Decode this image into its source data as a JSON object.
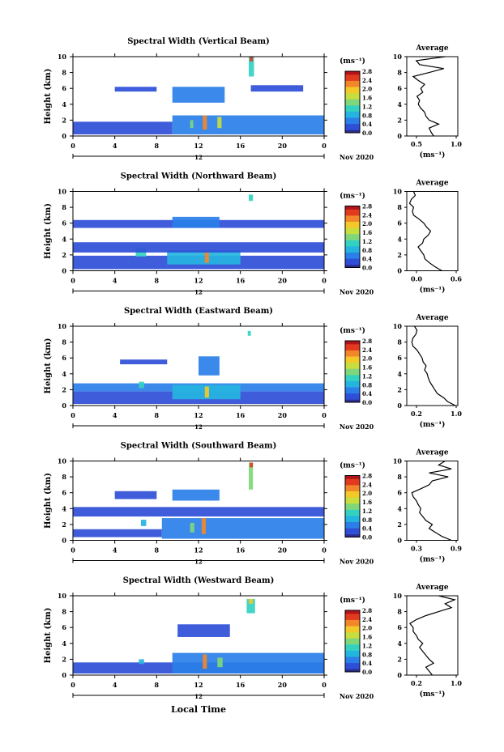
{
  "colors": {
    "background": "#ffffff",
    "axes": "#000000",
    "colormap": [
      "#2b2d8f",
      "#2f4fd8",
      "#2a7fe8",
      "#25b4e0",
      "#33d1c0",
      "#7fd77a",
      "#c8dd3e",
      "#f3c92a",
      "#f2872a",
      "#e23a1e",
      "#b0141a"
    ]
  },
  "page": {
    "xlabel": "Local Time",
    "date_label": "Nov 2020"
  },
  "chart_data": [
    {
      "type": "heatmap",
      "title": "Spectral Width (Vertical Beam)",
      "ylabel": "Height (km)",
      "xlabel": "Local Time",
      "xlim": [
        0,
        24
      ],
      "ylim": [
        0,
        10
      ],
      "xticks": [
        "0",
        "4",
        "8",
        "12",
        "16",
        "20",
        "0"
      ],
      "yticks": [
        "0",
        "2",
        "4",
        "6",
        "8",
        "10"
      ],
      "date_label": "Nov 2020",
      "marker_label": "12",
      "colorbar": {
        "unit": "(ms⁻¹)",
        "ticks": [
          "0.0",
          "0.4",
          "0.8",
          "1.2",
          "1.6",
          "2.0",
          "2.4",
          "2.8"
        ]
      },
      "regions": [
        {
          "t": [
            0,
            9.5
          ],
          "h": [
            0.2,
            1.8
          ],
          "level": 1
        },
        {
          "t": [
            9.5,
            24
          ],
          "h": [
            0.2,
            2.6
          ],
          "level": 2
        },
        {
          "t": [
            12.4,
            12.8
          ],
          "h": [
            0.8,
            2.6
          ],
          "level": 8
        },
        {
          "t": [
            13.8,
            14.2
          ],
          "h": [
            1.0,
            2.4
          ],
          "level": 6
        },
        {
          "t": [
            11.2,
            11.5
          ],
          "h": [
            1.0,
            2.0
          ],
          "level": 5
        },
        {
          "t": [
            4,
            8
          ],
          "h": [
            5.6,
            6.2
          ],
          "level": 1
        },
        {
          "t": [
            9.5,
            14.5
          ],
          "h": [
            4.2,
            6.2
          ],
          "level": 2
        },
        {
          "t": [
            17,
            22
          ],
          "h": [
            5.6,
            6.4
          ],
          "level": 1
        },
        {
          "t": [
            16.8,
            17.3
          ],
          "h": [
            7.5,
            10
          ],
          "level": 4
        },
        {
          "t": [
            16.9,
            17.2
          ],
          "h": [
            9.4,
            10
          ],
          "level": 9
        }
      ],
      "average": {
        "title": "Average",
        "xlabel": "(ms⁻¹)",
        "xlim": [
          0.2,
          1.0
        ],
        "xticks": [
          "0.5",
          "1.0"
        ],
        "heights": [
          0,
          0.5,
          1,
          1.5,
          2,
          2.5,
          3,
          3.5,
          4,
          4.5,
          5,
          5.5,
          6,
          6.5,
          7,
          7.5,
          8,
          8.5,
          9,
          9.5,
          10
        ],
        "values": [
          0.62,
          0.58,
          0.55,
          0.7,
          0.55,
          0.5,
          0.48,
          0.42,
          0.38,
          0.4,
          0.36,
          0.45,
          0.42,
          0.48,
          0.38,
          0.3,
          0.55,
          0.78,
          0.4,
          0.35,
          0.8
        ]
      }
    },
    {
      "type": "heatmap",
      "title": "Spectral Width (Northward Beam)",
      "ylabel": "Height (km)",
      "xlabel": "Local Time",
      "xlim": [
        0,
        24
      ],
      "ylim": [
        0,
        10
      ],
      "xticks": [
        "0",
        "4",
        "8",
        "12",
        "16",
        "20",
        "0"
      ],
      "yticks": [
        "0",
        "2",
        "4",
        "6",
        "8",
        "10"
      ],
      "date_label": "Nov 2020",
      "marker_label": "12",
      "colorbar": {
        "unit": "(ms⁻¹)",
        "ticks": [
          "0.0",
          "0.4",
          "0.8",
          "1.2",
          "1.6",
          "2.0",
          "2.4",
          "2.8"
        ]
      },
      "regions": [
        {
          "t": [
            0,
            24
          ],
          "h": [
            0.2,
            1.9
          ],
          "level": 1
        },
        {
          "t": [
            9,
            16
          ],
          "h": [
            0.8,
            2.6
          ],
          "level": 3
        },
        {
          "t": [
            12.6,
            13.0
          ],
          "h": [
            1.0,
            2.4
          ],
          "level": 8
        },
        {
          "t": [
            6,
            7
          ],
          "h": [
            1.8,
            2.8
          ],
          "level": 4
        },
        {
          "t": [
            0,
            24
          ],
          "h": [
            2.3,
            3.6
          ],
          "level": 1
        },
        {
          "t": [
            0,
            24
          ],
          "h": [
            5.4,
            6.4
          ],
          "level": 1
        },
        {
          "t": [
            9.5,
            14
          ],
          "h": [
            5.4,
            6.8
          ],
          "level": 2
        },
        {
          "t": [
            16.8,
            17.2
          ],
          "h": [
            8.8,
            9.6
          ],
          "level": 4
        }
      ],
      "average": {
        "title": "Average",
        "xlabel": "(ms⁻¹)",
        "xlim": [
          0.0,
          0.9
        ],
        "xticks": [
          "0.0",
          "0.6"
        ],
        "heights": [
          0,
          0.5,
          1,
          1.5,
          2,
          2.5,
          3,
          3.5,
          4,
          4.5,
          5,
          5.5,
          6,
          6.5,
          7,
          7.5,
          8,
          8.5,
          9,
          9.5,
          10
        ],
        "values": [
          0.62,
          0.5,
          0.4,
          0.32,
          0.3,
          0.25,
          0.2,
          0.28,
          0.3,
          0.38,
          0.42,
          0.35,
          0.3,
          0.22,
          0.12,
          0.1,
          0.12,
          0.05,
          0.08,
          0.15,
          0.12
        ]
      }
    },
    {
      "type": "heatmap",
      "title": "Spectral Width (Eastward Beam)",
      "ylabel": "Height (km)",
      "xlabel": "Local Time",
      "xlim": [
        0,
        24
      ],
      "ylim": [
        0,
        10
      ],
      "xticks": [
        "0",
        "4",
        "8",
        "12",
        "16",
        "20",
        "0"
      ],
      "yticks": [
        "0",
        "2",
        "4",
        "6",
        "8",
        "10"
      ],
      "date_label": "Nov 2020",
      "marker_label": "12",
      "colorbar": {
        "unit": "(ms⁻¹)",
        "ticks": [
          "0.0",
          "0.4",
          "0.8",
          "1.2",
          "1.6",
          "2.0",
          "2.4",
          "2.8"
        ]
      },
      "regions": [
        {
          "t": [
            0,
            24
          ],
          "h": [
            0.2,
            1.8
          ],
          "level": 1
        },
        {
          "t": [
            0,
            24
          ],
          "h": [
            1.8,
            2.8
          ],
          "level": 2
        },
        {
          "t": [
            9.5,
            16
          ],
          "h": [
            0.8,
            2.6
          ],
          "level": 3
        },
        {
          "t": [
            12.6,
            13.0
          ],
          "h": [
            1.0,
            2.4
          ],
          "level": 7
        },
        {
          "t": [
            6.3,
            6.8
          ],
          "h": [
            2.2,
            3.0
          ],
          "level": 4
        },
        {
          "t": [
            12,
            14
          ],
          "h": [
            3.8,
            6.2
          ],
          "level": 2
        },
        {
          "t": [
            4.5,
            9
          ],
          "h": [
            5.2,
            5.8
          ],
          "level": 1
        },
        {
          "t": [
            16.7,
            17.0
          ],
          "h": [
            8.8,
            9.4
          ],
          "level": 4
        }
      ],
      "average": {
        "title": "Average",
        "xlabel": "(ms⁻¹)",
        "xlim": [
          0.0,
          1.0
        ],
        "xticks": [
          "0.2",
          "1.0"
        ],
        "heights": [
          0,
          0.5,
          1,
          1.5,
          2,
          2.5,
          3,
          3.5,
          4,
          4.5,
          5,
          5.5,
          6,
          6.5,
          7,
          7.5,
          8,
          8.5,
          9,
          9.5,
          10
        ],
        "values": [
          0.95,
          0.8,
          0.72,
          0.6,
          0.55,
          0.5,
          0.45,
          0.42,
          0.4,
          0.35,
          0.38,
          0.32,
          0.3,
          0.25,
          0.2,
          0.12,
          0.1,
          0.12,
          0.18,
          0.2,
          0.15
        ]
      }
    },
    {
      "type": "heatmap",
      "title": "Spectral Width (Southward Beam)",
      "ylabel": "Height (km)",
      "xlabel": "Local Time",
      "xlim": [
        0,
        24
      ],
      "ylim": [
        0,
        10
      ],
      "xticks": [
        "0",
        "4",
        "8",
        "12",
        "16",
        "20",
        "0"
      ],
      "yticks": [
        "0",
        "2",
        "4",
        "6",
        "8",
        "10"
      ],
      "date_label": "Nov 2020",
      "marker_label": "12",
      "colorbar": {
        "unit": "(ms⁻¹)",
        "ticks": [
          "0.0",
          "0.4",
          "0.8",
          "1.2",
          "1.6",
          "2.0",
          "2.4",
          "2.8"
        ]
      },
      "regions": [
        {
          "t": [
            0,
            8.5
          ],
          "h": [
            0.4,
            1.4
          ],
          "level": 1
        },
        {
          "t": [
            8.5,
            24
          ],
          "h": [
            0.2,
            2.8
          ],
          "level": 2
        },
        {
          "t": [
            12.3,
            12.7
          ],
          "h": [
            0.8,
            2.8
          ],
          "level": 8
        },
        {
          "t": [
            11.2,
            11.6
          ],
          "h": [
            1.0,
            2.2
          ],
          "level": 5
        },
        {
          "t": [
            6.5,
            7
          ],
          "h": [
            1.8,
            2.6
          ],
          "level": 3
        },
        {
          "t": [
            0,
            24
          ],
          "h": [
            3.0,
            4.2
          ],
          "level": 1
        },
        {
          "t": [
            4,
            8
          ],
          "h": [
            5.2,
            6.2
          ],
          "level": 1
        },
        {
          "t": [
            9.5,
            14
          ],
          "h": [
            5.0,
            6.4
          ],
          "level": 2
        },
        {
          "t": [
            16.8,
            17.2
          ],
          "h": [
            6.4,
            9.8
          ],
          "level": 5
        },
        {
          "t": [
            16.9,
            17.2
          ],
          "h": [
            9.2,
            9.8
          ],
          "level": 9
        }
      ],
      "average": {
        "title": "Average",
        "xlabel": "(ms⁻¹)",
        "xlim": [
          0.2,
          1.0
        ],
        "xticks": [
          "0.3",
          "0.9"
        ],
        "heights": [
          0,
          0.5,
          1,
          1.5,
          2,
          2.5,
          3,
          3.5,
          4,
          4.5,
          5,
          5.5,
          6,
          6.5,
          7,
          7.5,
          8,
          8.5,
          9,
          9.5,
          10
        ],
        "values": [
          0.9,
          0.75,
          0.65,
          0.55,
          0.6,
          0.5,
          0.45,
          0.4,
          0.42,
          0.38,
          0.35,
          0.3,
          0.28,
          0.42,
          0.55,
          0.6,
          0.85,
          0.55,
          0.9,
          0.7,
          0.8
        ]
      }
    },
    {
      "type": "heatmap",
      "title": "Spectral Width (Westward Beam)",
      "ylabel": "Height (km)",
      "xlabel": "Local Time",
      "xlim": [
        0,
        24
      ],
      "ylim": [
        0,
        10
      ],
      "xticks": [
        "0",
        "4",
        "8",
        "12",
        "16",
        "20",
        "0"
      ],
      "yticks": [
        "0",
        "2",
        "4",
        "6",
        "8",
        "10"
      ],
      "date_label": "Nov 2020",
      "marker_label": "12",
      "colorbar": {
        "unit": "(ms⁻¹)",
        "ticks": [
          "0.0",
          "0.4",
          "0.8",
          "1.2",
          "1.6",
          "2.0",
          "2.4",
          "2.8"
        ]
      },
      "regions": [
        {
          "t": [
            0,
            24
          ],
          "h": [
            0.2,
            1.6
          ],
          "level": 1
        },
        {
          "t": [
            9.5,
            24
          ],
          "h": [
            0.2,
            2.8
          ],
          "level": 2
        },
        {
          "t": [
            12.4,
            12.8
          ],
          "h": [
            0.8,
            2.6
          ],
          "level": 8
        },
        {
          "t": [
            13.8,
            14.3
          ],
          "h": [
            1.0,
            2.2
          ],
          "level": 5
        },
        {
          "t": [
            6.3,
            6.8
          ],
          "h": [
            1.4,
            2.0
          ],
          "level": 3
        },
        {
          "t": [
            10,
            15
          ],
          "h": [
            4.8,
            6.4
          ],
          "level": 1
        },
        {
          "t": [
            16.6,
            17.4
          ],
          "h": [
            7.8,
            9.6
          ],
          "level": 4
        },
        {
          "t": [
            16.8,
            17.2
          ],
          "h": [
            9.0,
            9.6
          ],
          "level": 7
        }
      ],
      "average": {
        "title": "Average",
        "xlabel": "(ms⁻¹)",
        "xlim": [
          0.2,
          1.0
        ],
        "xticks": [
          "0.2",
          "1.0"
        ],
        "heights": [
          0,
          0.5,
          1,
          1.5,
          2,
          2.5,
          3,
          3.5,
          4,
          4.5,
          5,
          5.5,
          6,
          6.5,
          7,
          7.5,
          8,
          8.5,
          9,
          9.5,
          10
        ],
        "values": [
          0.6,
          0.55,
          0.5,
          0.62,
          0.55,
          0.5,
          0.45,
          0.4,
          0.45,
          0.38,
          0.35,
          0.3,
          0.3,
          0.25,
          0.35,
          0.5,
          0.7,
          0.9,
          0.8,
          0.95,
          0.7
        ]
      }
    }
  ]
}
